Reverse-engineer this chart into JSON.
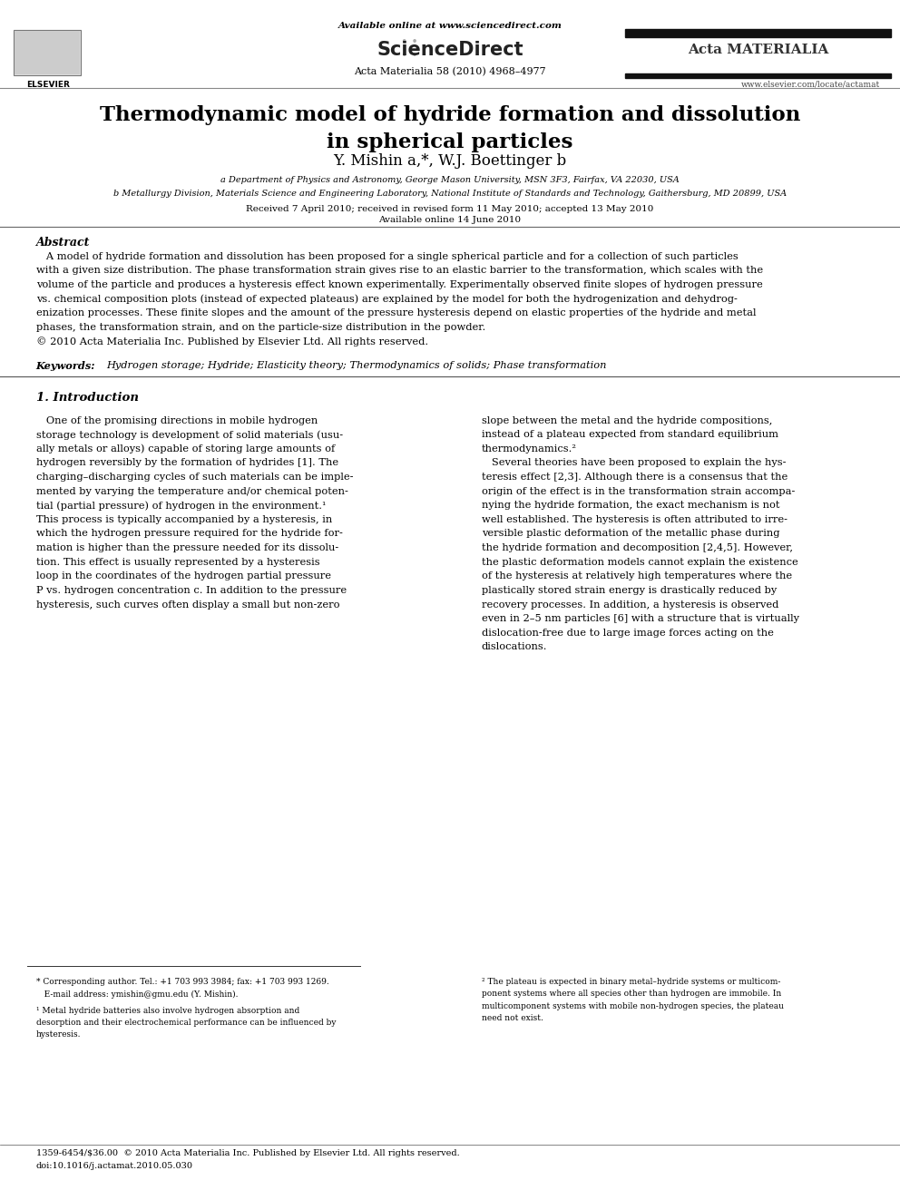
{
  "bg_color": "#ffffff",
  "page_width": 9.92,
  "page_height": 13.23,
  "header": {
    "elsevier_text": "ELSEVIER",
    "available_online": "Available online at www.sciencedirect.com",
    "sciencedirect": "ScienceDirect",
    "journal_line": "Acta Materialia 58 (2010) 4968–4977",
    "acta_materialia": "Acta MATERIALIA",
    "website": "www.elsevier.com/locate/actamat"
  },
  "title": "Thermodynamic model of hydride formation and dissolution\nin spherical particles",
  "authors": "Y. Mishin a,*, W.J. Boettinger b",
  "affil_a": "a Department of Physics and Astronomy, George Mason University, MSN 3F3, Fairfax, VA 22030, USA",
  "affil_b": "b Metallurgy Division, Materials Science and Engineering Laboratory, National Institute of Standards and Technology, Gaithersburg, MD 20899, USA",
  "dates": "Received 7 April 2010; received in revised form 11 May 2010; accepted 13 May 2010",
  "available": "Available online 14 June 2010",
  "abstract_title": "Abstract",
  "abstract_lines": [
    "   A model of hydride formation and dissolution has been proposed for a single spherical particle and for a collection of such particles",
    "with a given size distribution. The phase transformation strain gives rise to an elastic barrier to the transformation, which scales with the",
    "volume of the particle and produces a hysteresis effect known experimentally. Experimentally observed finite slopes of hydrogen pressure",
    "vs. chemical composition plots (instead of expected plateaus) are explained by the model for both the hydrogenization and dehydrog-",
    "enization processes. These finite slopes and the amount of the pressure hysteresis depend on elastic properties of the hydride and metal",
    "phases, the transformation strain, and on the particle-size distribution in the powder.",
    "© 2010 Acta Materialia Inc. Published by Elsevier Ltd. All rights reserved."
  ],
  "keywords_label": "Keywords:  ",
  "keywords_text": "Hydrogen storage; Hydride; Elasticity theory; Thermodynamics of solids; Phase transformation",
  "section1_title": "1. Introduction",
  "intro_col1_lines": [
    "   One of the promising directions in mobile hydrogen",
    "storage technology is development of solid materials (usu-",
    "ally metals or alloys) capable of storing large amounts of",
    "hydrogen reversibly by the formation of hydrides [1]. The",
    "charging–discharging cycles of such materials can be imple-",
    "mented by varying the temperature and/or chemical poten-",
    "tial (partial pressure) of hydrogen in the environment.¹",
    "This process is typically accompanied by a hysteresis, in",
    "which the hydrogen pressure required for the hydride for-",
    "mation is higher than the pressure needed for its dissolu-",
    "tion. This effect is usually represented by a hysteresis",
    "loop in the coordinates of the hydrogen partial pressure",
    "P vs. hydrogen concentration c. In addition to the pressure",
    "hysteresis, such curves often display a small but non-zero"
  ],
  "intro_col2_lines": [
    "slope between the metal and the hydride compositions,",
    "instead of a plateau expected from standard equilibrium",
    "thermodynamics.²",
    "   Several theories have been proposed to explain the hys-",
    "teresis effect [2,3]. Although there is a consensus that the",
    "origin of the effect is in the transformation strain accompa-",
    "nying the hydride formation, the exact mechanism is not",
    "well established. The hysteresis is often attributed to irre-",
    "versible plastic deformation of the metallic phase during",
    "the hydride formation and decomposition [2,4,5]. However,",
    "the plastic deformation models cannot explain the existence",
    "of the hysteresis at relatively high temperatures where the",
    "plastically stored strain energy is drastically reduced by",
    "recovery processes. In addition, a hysteresis is observed",
    "even in 2–5 nm particles [6] with a structure that is virtually",
    "dislocation-free due to large image forces acting on the",
    "dislocations."
  ],
  "footnote_star": "* Corresponding author. Tel.: +1 703 993 3984; fax: +1 703 993 1269.",
  "footnote_email": "   E-mail address: ymishin@gmu.edu (Y. Mishin).",
  "footnote1_lines": [
    "¹ Metal hydride batteries also involve hydrogen absorption and",
    "desorption and their electrochemical performance can be influenced by",
    "hysteresis."
  ],
  "footnote2_lines": [
    "² The plateau is expected in binary metal–hydride systems or multicom-",
    "ponent systems where all species other than hydrogen are immobile. In",
    "multicomponent systems with mobile non-hydrogen species, the plateau",
    "need not exist."
  ],
  "bottom_line1": "1359-6454/$36.00  © 2010 Acta Materialia Inc. Published by Elsevier Ltd. All rights reserved.",
  "bottom_line2": "doi:10.1016/j.actamat.2010.05.030"
}
